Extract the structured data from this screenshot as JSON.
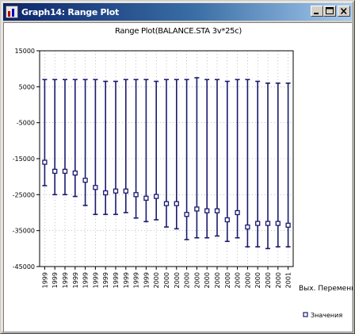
{
  "window": {
    "title": "Graph14: Range Plot",
    "controls": {
      "minimize": "minimize",
      "maximize": "maximize",
      "close": "close"
    }
  },
  "chart_data": {
    "type": "range",
    "title": "Range Plot(BALANCE.STA 3v*25c)",
    "xlabel": "",
    "ylabel": "",
    "x_axis_name": "Вых. Переменная",
    "ylim": [
      -45000,
      15000
    ],
    "yticks": [
      -45000,
      -35000,
      -25000,
      -15000,
      -5000,
      5000,
      15000
    ],
    "ytick_labels": [
      "-45000",
      "-35000",
      "-25000",
      "-15000",
      "-5000",
      "5000",
      "15000"
    ],
    "grid": true,
    "legend": {
      "position": "bottom-right",
      "entry": "Значения"
    },
    "categories": [
      "1999",
      "1999",
      "1999",
      "1999",
      "1999",
      "1999",
      "1999",
      "1999",
      "1999",
      "1999",
      "1999",
      "2000",
      "2000",
      "2000",
      "2000",
      "2000",
      "2000",
      "2000",
      "2000",
      "2000",
      "2000",
      "2000",
      "2000",
      "2000",
      "2001"
    ],
    "series": [
      {
        "name": "Значения",
        "high": [
          7000,
          7000,
          7000,
          7000,
          7000,
          7000,
          6500,
          6500,
          7000,
          7000,
          7000,
          6500,
          7000,
          7000,
          7000,
          7500,
          7000,
          7000,
          6500,
          7000,
          7000,
          6500,
          6000,
          6000,
          6000
        ],
        "low": [
          -22500,
          -25000,
          -25000,
          -25500,
          -28000,
          -30500,
          -30500,
          -30500,
          -30000,
          -31500,
          -32500,
          -32000,
          -34000,
          -34500,
          -37500,
          -37000,
          -37000,
          -36500,
          -38000,
          -37000,
          -39500,
          -39500,
          -40000,
          -39500,
          -39500
        ],
        "value": [
          -16000,
          -18500,
          -18500,
          -19000,
          -21000,
          -23000,
          -24500,
          -24000,
          -24000,
          -25000,
          -26000,
          -25500,
          -27500,
          -27500,
          -30500,
          -29000,
          -29500,
          -29500,
          -32000,
          -30000,
          -34000,
          -33000,
          -33000,
          -33000,
          -33500
        ]
      }
    ],
    "colors": {
      "range": "#1a1a6e",
      "marker_fill": "#ffffff",
      "grid": "#9a9a9a"
    }
  }
}
